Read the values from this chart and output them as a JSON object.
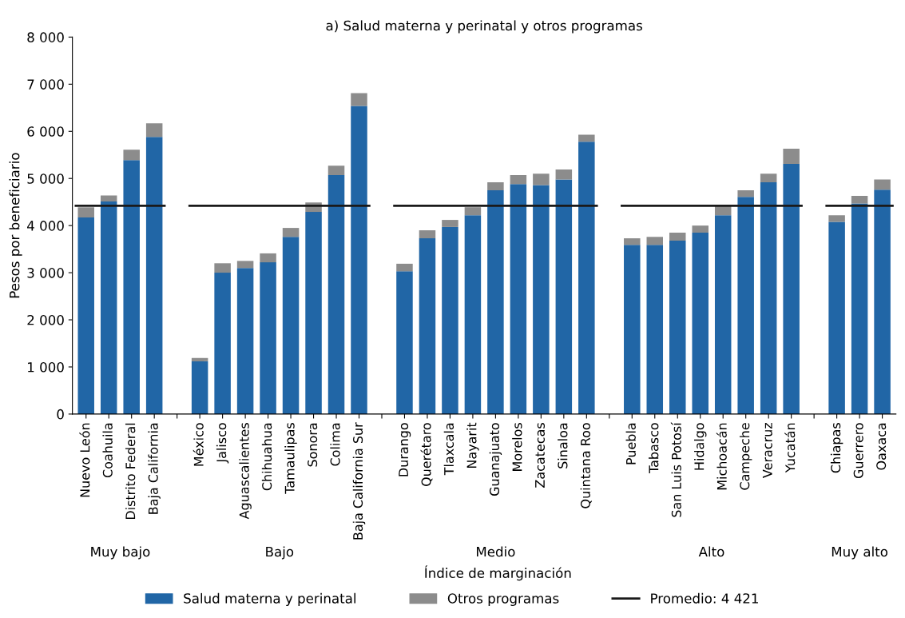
{
  "chart_data": {
    "type": "bar",
    "stacked": true,
    "title": "a) Salud materna y perinatal y otros programas",
    "xlabel": "Índice de marginación",
    "ylabel": "Pesos por beneficiario",
    "categories": [
      "Nuevo León",
      "Coahuila",
      "Distrito Federal",
      "Baja California",
      null,
      "México",
      "Jalisco",
      "Aguascalientes",
      "Chihuahua",
      "Tamaulipas",
      "Sonora",
      "Colima",
      "Baja California Sur",
      null,
      "Durango",
      "Querétaro",
      "Tlaxcala",
      "Nayarit",
      "Guanajuato",
      "Morelos",
      "Zacatecas",
      "Sinaloa",
      "Quintana Roo",
      null,
      "Puebla",
      "Tabasco",
      "San Luis Potosí",
      "Hidalgo",
      "Michoacán",
      "Campeche",
      "Veracruz",
      "Yucatán",
      null,
      "Chiapas",
      "Guerrero",
      "Oaxaca"
    ],
    "series": [
      {
        "name": "Salud materna y perinatal",
        "color": "#2166a6",
        "values": [
          4170,
          4510,
          5390,
          5880,
          null,
          1120,
          3000,
          3100,
          3220,
          3760,
          4290,
          5070,
          6540,
          null,
          3030,
          3730,
          3970,
          4220,
          4750,
          4880,
          4860,
          4980,
          5780,
          null,
          3590,
          3590,
          3680,
          3850,
          4220,
          4610,
          4920,
          5310,
          null,
          4080,
          4470,
          4760
        ]
      },
      {
        "name": "Otros programas",
        "color": "#8c8c8c",
        "values": [
          220,
          130,
          220,
          290,
          null,
          70,
          200,
          150,
          190,
          190,
          200,
          200,
          270,
          null,
          160,
          170,
          150,
          170,
          170,
          190,
          240,
          210,
          150,
          null,
          140,
          170,
          170,
          150,
          190,
          140,
          180,
          320,
          null,
          140,
          160,
          220
        ]
      }
    ],
    "ylim": [
      0,
      8000
    ],
    "yticks": [
      {
        "value": 0,
        "label": "0"
      },
      {
        "value": 1000,
        "label": "1 000"
      },
      {
        "value": 2000,
        "label": "2 000"
      },
      {
        "value": 3000,
        "label": "3 000"
      },
      {
        "value": 4000,
        "label": "4 000"
      },
      {
        "value": 5000,
        "label": "5 000"
      },
      {
        "value": 6000,
        "label": "6 000"
      },
      {
        "value": 7000,
        "label": "7 000"
      },
      {
        "value": 8000,
        "label": "8 000"
      }
    ],
    "ref_lines": [
      {
        "axis": "y",
        "value": 4421,
        "label": "Promedio: 4 421",
        "color": "#1a1a1a",
        "line_style": "solid"
      }
    ],
    "annotations": [
      "Muy bajo",
      "Bajo",
      "Medio",
      "Alto",
      "Muy alto"
    ],
    "legend": "bottom",
    "grid": false
  }
}
